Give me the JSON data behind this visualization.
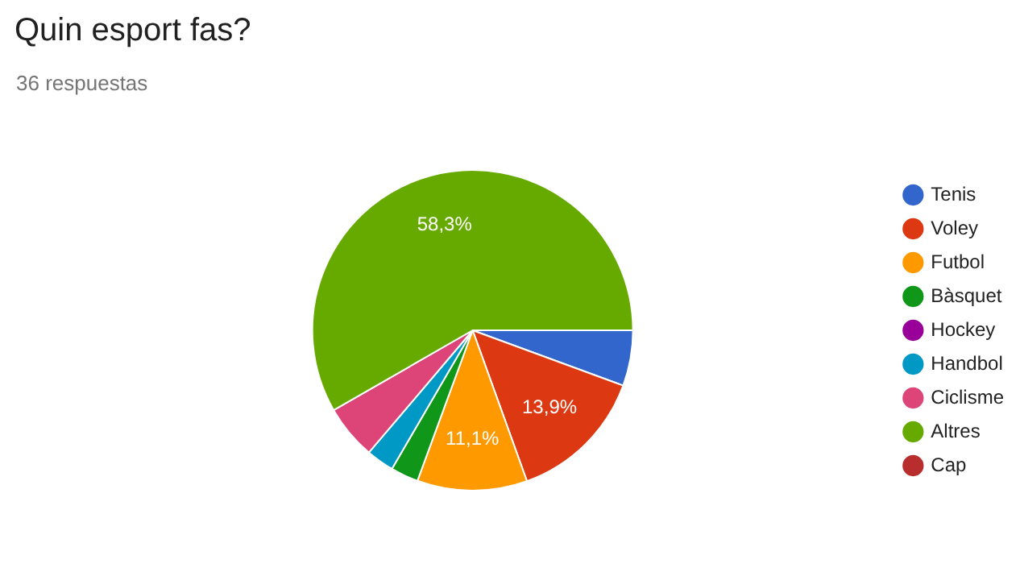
{
  "chart_data": {
    "type": "pie",
    "title": "Quin esport fas?",
    "subtitle": "36 respuestas",
    "categories": [
      "Tenis",
      "Voley",
      "Futbol",
      "Bàsquet",
      "Hockey",
      "Handbol",
      "Ciclisme",
      "Altres",
      "Cap"
    ],
    "values": [
      5.6,
      13.9,
      11.1,
      2.8,
      0,
      2.8,
      5.5,
      58.3,
      0
    ],
    "colors": [
      "#3366cc",
      "#dc3912",
      "#ff9900",
      "#109618",
      "#990099",
      "#0099c6",
      "#dd4477",
      "#66aa00",
      "#b82e2e"
    ],
    "value_labels": [
      null,
      "13,9%",
      "11,1%",
      null,
      null,
      null,
      null,
      "58,3%",
      null
    ],
    "legend": "right"
  }
}
